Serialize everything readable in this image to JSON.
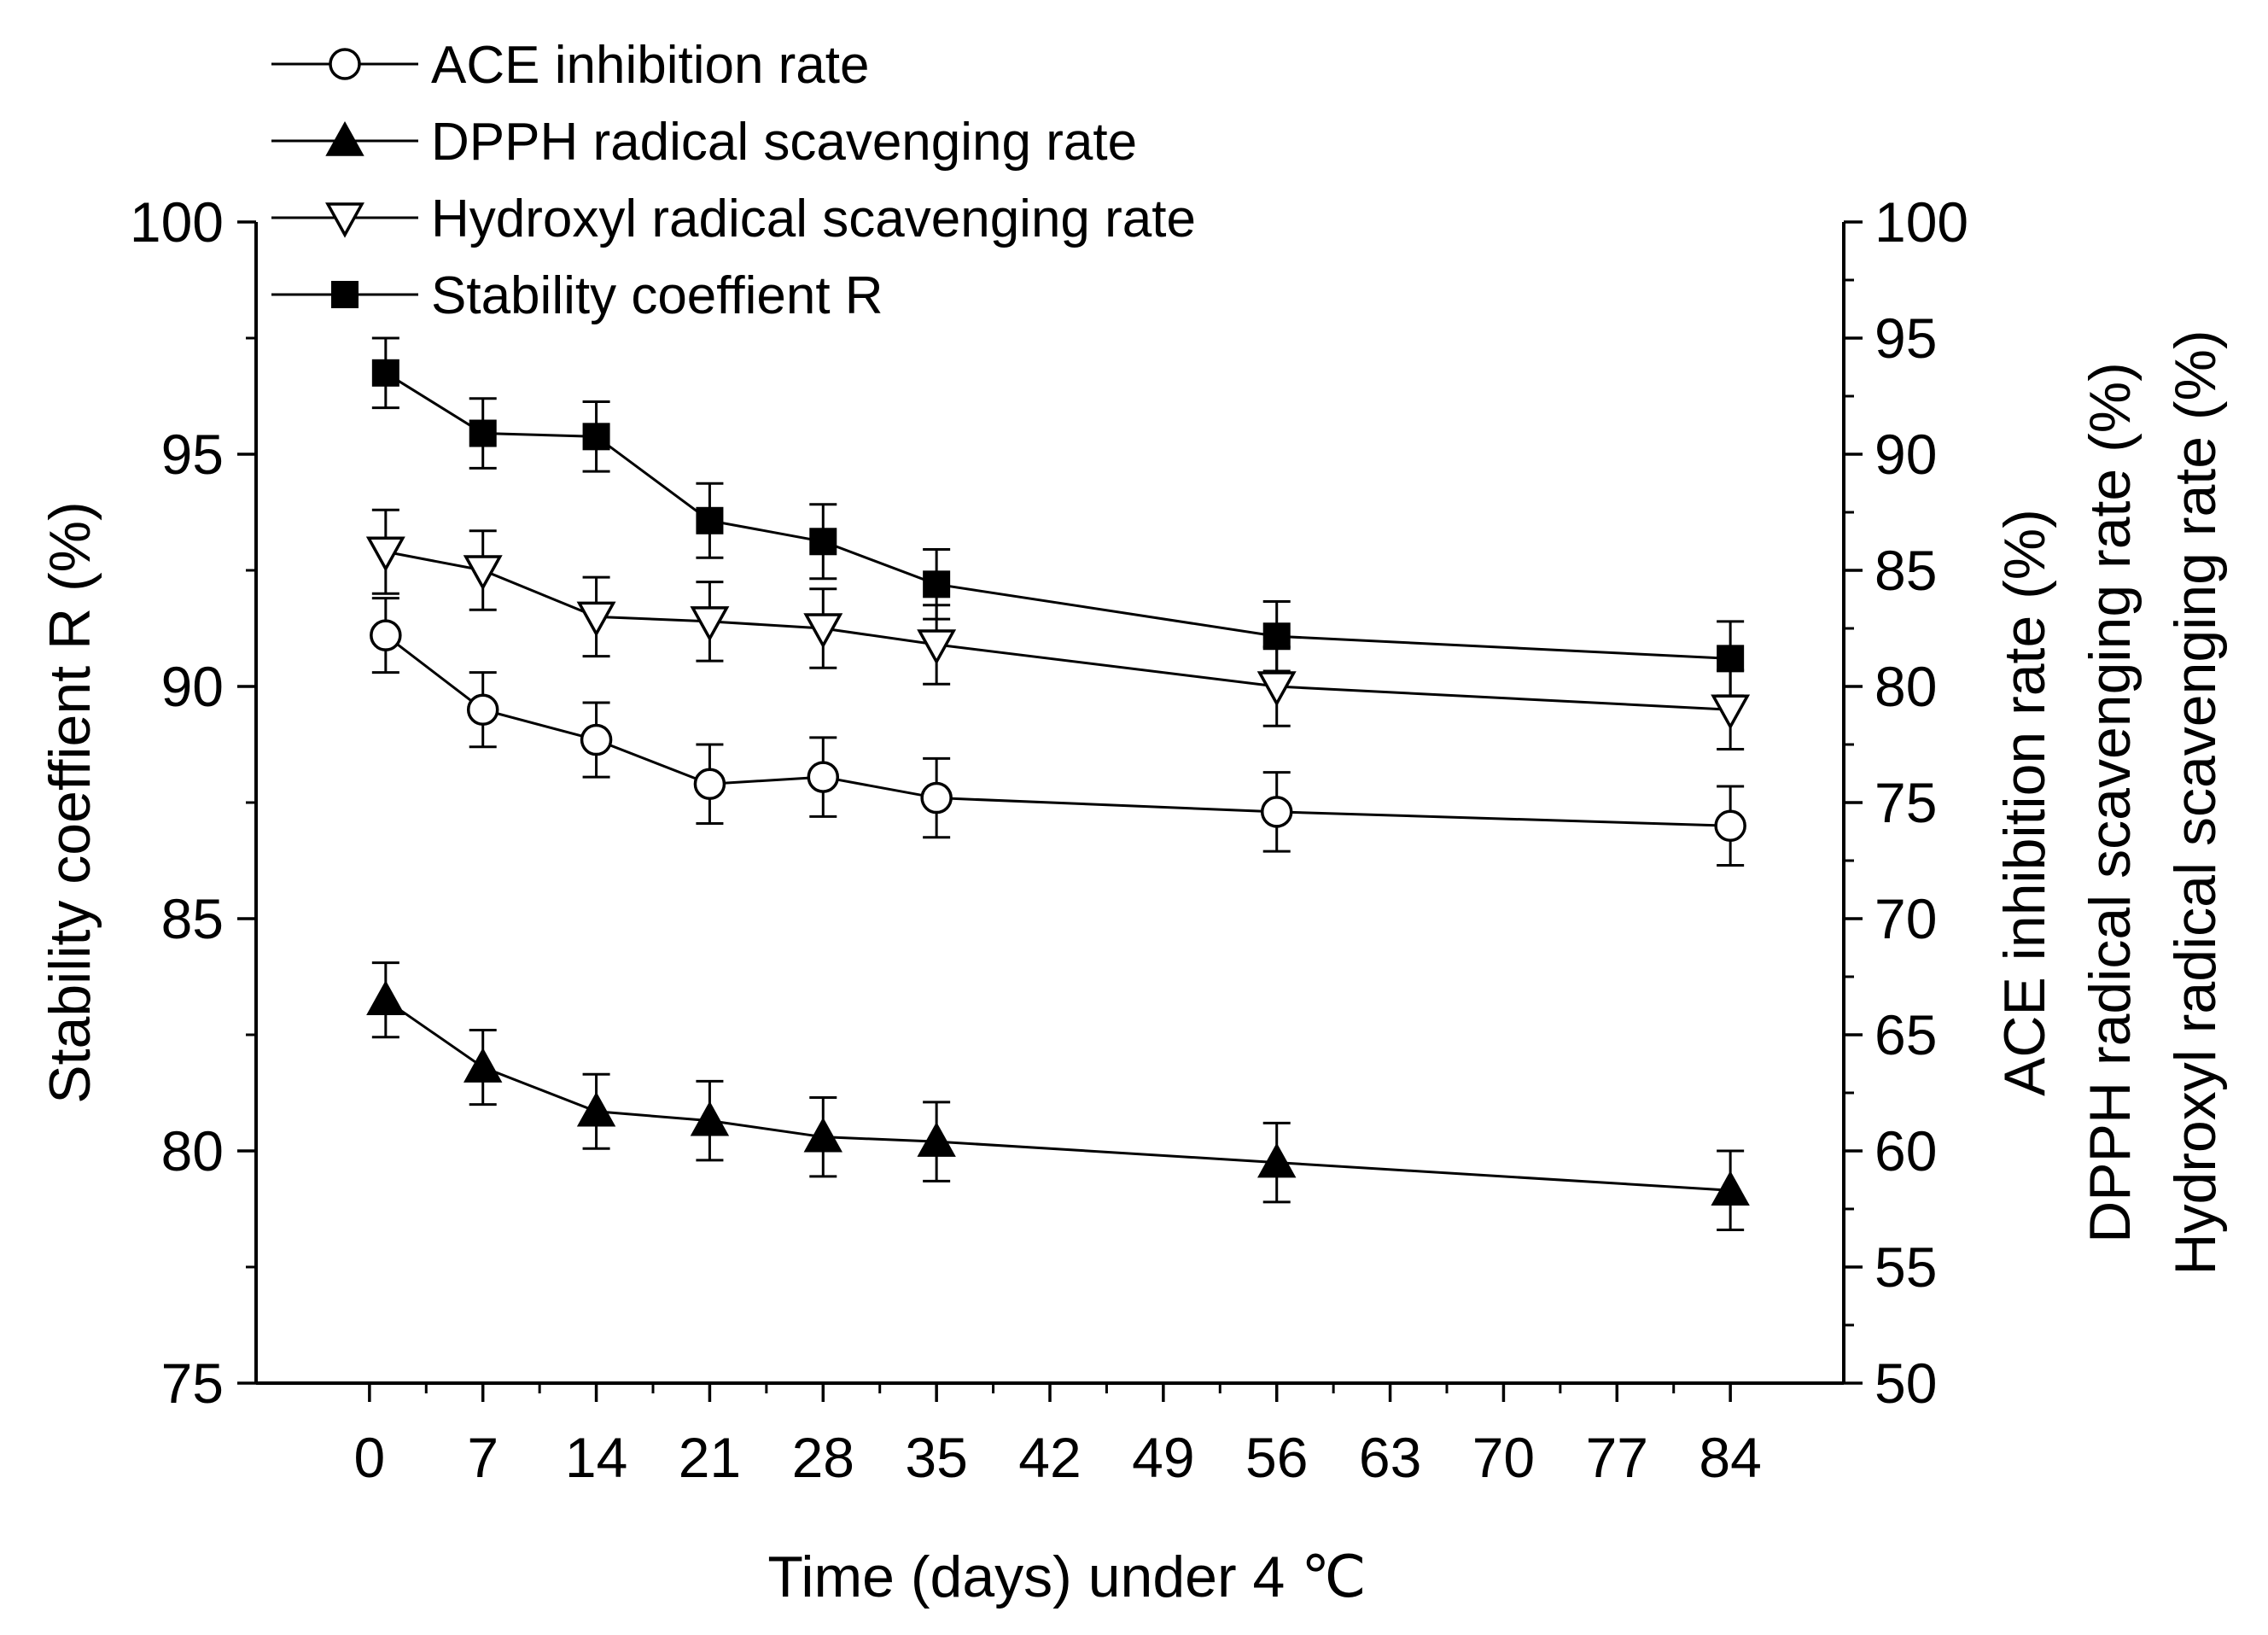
{
  "chart_data": {
    "type": "line",
    "title": "",
    "xlabel": "Time (days) under 4 ℃",
    "ylabel_left": "Stability coeffient R (%)",
    "ylabel_right": [
      "ACE inhibition rate (%)",
      "DPPH radical scavenging rate (%)",
      "Hydroxyl radical scavenging rate (%)"
    ],
    "xlim": [
      -7,
      91
    ],
    "ylim_left": [
      75,
      100
    ],
    "ylim_right": [
      50,
      100
    ],
    "x_ticks": [
      0,
      7,
      14,
      21,
      28,
      35,
      42,
      49,
      56,
      63,
      70,
      77,
      84
    ],
    "y_left_ticks": [
      75,
      80,
      85,
      90,
      95,
      100
    ],
    "y_right_ticks": [
      50,
      55,
      60,
      65,
      70,
      75,
      80,
      85,
      90,
      95,
      100
    ],
    "x": [
      1,
      7,
      14,
      21,
      28,
      35,
      56,
      84
    ],
    "legend_position": "top-left",
    "series": [
      {
        "name": "ACE inhibition rate",
        "marker": "open-circle",
        "axis": "right",
        "values": [
          82.2,
          79.0,
          77.7,
          75.8,
          76.1,
          75.2,
          74.6,
          74.0
        ],
        "errors": [
          1.6,
          1.6,
          1.6,
          1.7,
          1.7,
          1.7,
          1.7,
          1.7
        ]
      },
      {
        "name": "DPPH radical scavenging rate",
        "marker": "filled-triangle-up",
        "axis": "right",
        "values": [
          66.5,
          63.6,
          61.7,
          61.3,
          60.6,
          60.4,
          59.5,
          58.3
        ],
        "errors": [
          1.6,
          1.6,
          1.6,
          1.7,
          1.7,
          1.7,
          1.7,
          1.7
        ]
      },
      {
        "name": "Hydroxyl radical scavenging rate",
        "marker": "open-triangle-down",
        "axis": "right",
        "values": [
          85.8,
          85.0,
          83.0,
          82.8,
          82.5,
          81.8,
          80.0,
          79.0
        ],
        "errors": [
          1.8,
          1.7,
          1.7,
          1.7,
          1.7,
          1.7,
          1.7,
          1.7
        ]
      },
      {
        "name": "Stability coeffient R",
        "marker": "filled-square",
        "axis": "left",
        "values": [
          96.75,
          95.45,
          95.38,
          93.57,
          93.12,
          92.2,
          91.08,
          90.6
        ],
        "errors": [
          0.75,
          0.75,
          0.75,
          0.8,
          0.8,
          0.75,
          0.75,
          0.8
        ]
      }
    ]
  }
}
